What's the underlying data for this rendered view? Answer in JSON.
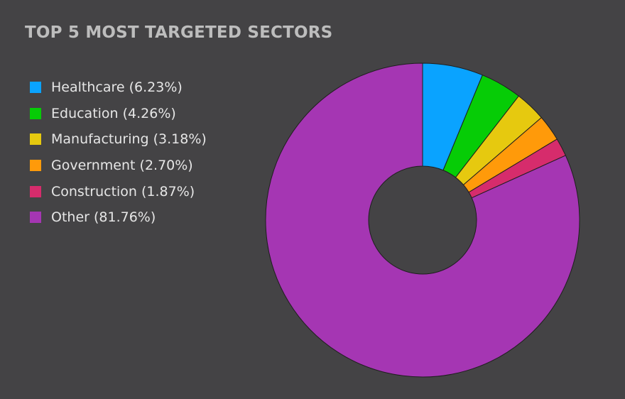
{
  "chart_data": {
    "type": "pie",
    "title": "TOP 5 MOST TARGETED SECTORS",
    "slices": [
      {
        "label": "Healthcare",
        "value": 6.23,
        "legend": "Healthcare (6.23%)",
        "color": "#0aa3ff"
      },
      {
        "label": "Education",
        "value": 4.26,
        "legend": "Education (4.26%)",
        "color": "#06cc06"
      },
      {
        "label": "Manufacturing",
        "value": 3.18,
        "legend": "Manufacturing (3.18%)",
        "color": "#e6c90f"
      },
      {
        "label": "Government",
        "value": 2.7,
        "legend": "Government (2.70%)",
        "color": "#ff9a0a"
      },
      {
        "label": "Construction",
        "value": 1.87,
        "legend": "Construction (1.87%)",
        "color": "#d62c6c"
      },
      {
        "label": "Other",
        "value": 81.76,
        "legend": "Other (81.76%)",
        "color": "#a536b3"
      }
    ],
    "legend_position": "left"
  }
}
